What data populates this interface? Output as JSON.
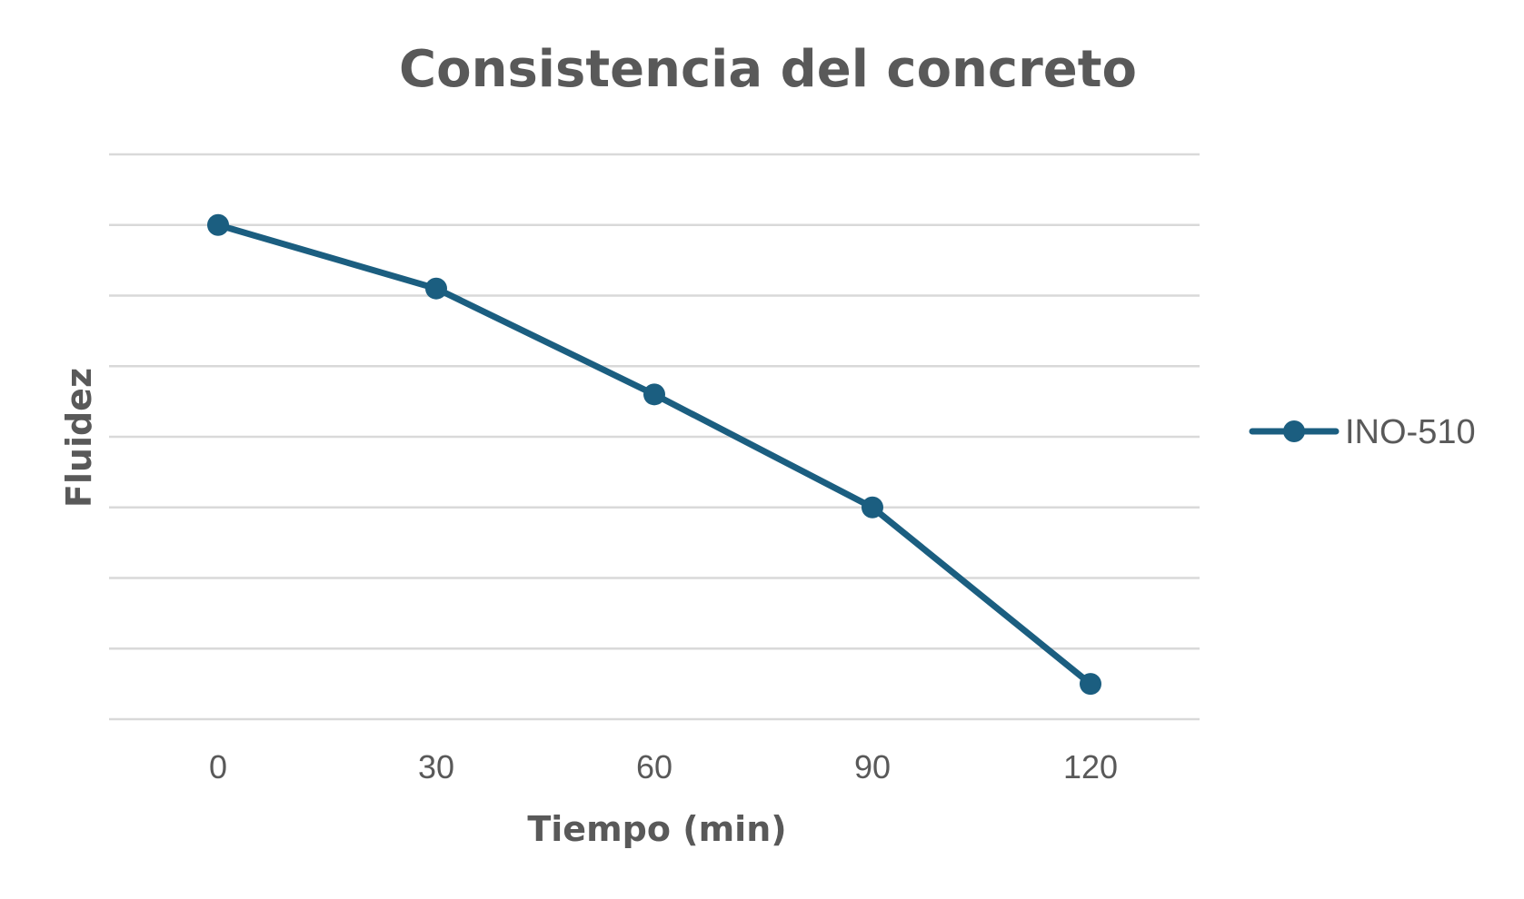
{
  "chart_data": {
    "type": "line",
    "title": "Consistencia del concreto",
    "xlabel": "Tiempo (min)",
    "ylabel": "Fluidez",
    "x": [
      "0",
      "30",
      "60",
      "90",
      "120"
    ],
    "series": [
      {
        "name": "INO-510",
        "values": [
          7.0,
          6.1,
          4.6,
          3.0,
          0.5
        ],
        "color": "#1b5e80"
      }
    ],
    "ylim": [
      0,
      8
    ],
    "y_gridlines": 8,
    "y_tick_labels_visible": false,
    "grid": true,
    "legend": "right"
  }
}
